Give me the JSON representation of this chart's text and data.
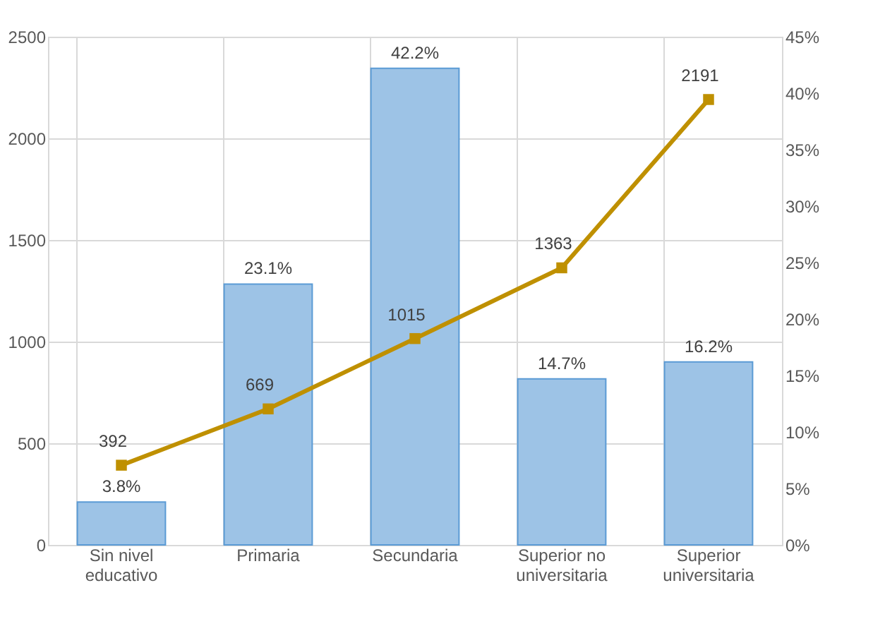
{
  "chart_data": {
    "type": "bar",
    "categories": [
      "Sin nivel educativo",
      "Primaria",
      "Secundaria",
      "Superior no universitaria",
      "Superior universitaria"
    ],
    "series": [
      {
        "axis": "y2",
        "color": "#9dc3e6",
        "values": [
          3.8,
          23.1,
          42.2,
          14.7,
          16.2
        ],
        "value_labels": [
          "3.8%",
          "23.1%",
          "42.2%",
          "14.7%",
          "16.2%"
        ]
      },
      {
        "type": "line",
        "color": "#bf9000",
        "values": [
          392,
          669,
          1015,
          1363,
          2191
        ],
        "value_labels": [
          "392",
          "669",
          "1015",
          "1363",
          "2191"
        ]
      }
    ],
    "ylim": [
      0,
      2500
    ],
    "yticks": [
      0,
      500,
      1000,
      1500,
      2000,
      2500
    ],
    "y2lim": [
      0,
      45
    ],
    "y2ticks": [
      {
        "value": 0,
        "label": "0%"
      },
      {
        "value": 5,
        "label": "5%"
      },
      {
        "value": 10,
        "label": "10%"
      },
      {
        "value": 15,
        "label": "15%"
      },
      {
        "value": 20,
        "label": "20%"
      },
      {
        "value": 25,
        "label": "25%"
      },
      {
        "value": 30,
        "label": "30%"
      },
      {
        "value": 35,
        "label": "35%"
      },
      {
        "value": 40,
        "label": "40%"
      },
      {
        "value": 45,
        "label": "45%"
      }
    ],
    "grid": true,
    "marker": "square",
    "line_style": "solid"
  }
}
